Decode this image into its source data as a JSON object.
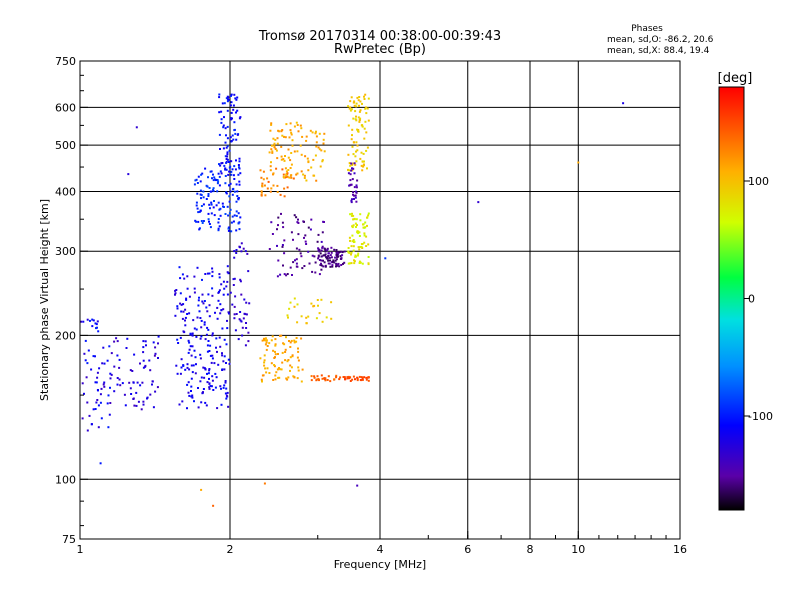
{
  "chart_data": {
    "type": "scatter",
    "title": "Tromsø 20170314 00:38:00-00:39:43",
    "subtitle": "RwPretec (Bp)",
    "xlabel": "Frequency [MHz]",
    "ylabel": "Stationary phase Virtual Height [km]",
    "x_scale": "log",
    "y_scale": "log",
    "xlim": [
      1,
      16
    ],
    "ylim": [
      75,
      750
    ],
    "x_ticks": [
      {
        "value": 1,
        "label": "1"
      },
      {
        "value": 2,
        "label": "2"
      },
      {
        "value": 4,
        "label": "4"
      },
      {
        "value": 6,
        "label": "6"
      },
      {
        "value": 8,
        "label": "8"
      },
      {
        "value": 10,
        "label": "10"
      },
      {
        "value": 16,
        "label": "16"
      }
    ],
    "y_ticks": [
      {
        "value": 75,
        "label": "75"
      },
      {
        "value": 100,
        "label": "100"
      },
      {
        "value": 200,
        "label": "200"
      },
      {
        "value": 300,
        "label": "300"
      },
      {
        "value": 400,
        "label": "400"
      },
      {
        "value": 500,
        "label": "500"
      },
      {
        "value": 600,
        "label": "600"
      },
      {
        "value": 750,
        "label": "750"
      }
    ],
    "x_grid": [
      2,
      4,
      6,
      8,
      10
    ],
    "y_grid": [
      100,
      200,
      300,
      400,
      500,
      600
    ],
    "phase_stats": {
      "heading": "Phases",
      "line_o": "mean, sd,O: -86.2, 20.6",
      "line_x": "mean, sd,X:  88.4, 19.4"
    },
    "colorbar": {
      "label": "[deg]",
      "range": [
        -180,
        180
      ],
      "ticks": [
        {
          "value": 100,
          "label": "100"
        },
        {
          "value": 0,
          "label": "0"
        },
        {
          "value": -100,
          "label": "-100"
        }
      ]
    },
    "clusters": [
      {
        "fmin": 1.0,
        "fmax": 1.15,
        "hmin": 125,
        "hmax": 220,
        "n": 60,
        "phase": -115,
        "spread": 20
      },
      {
        "fmin": 1.15,
        "fmax": 1.45,
        "hmin": 140,
        "hmax": 200,
        "n": 70,
        "phase": -125,
        "spread": 15
      },
      {
        "fmin": 1.55,
        "fmax": 2.0,
        "hmin": 140,
        "hmax": 280,
        "n": 230,
        "phase": -115,
        "spread": 15
      },
      {
        "fmin": 1.7,
        "fmax": 2.1,
        "hmin": 330,
        "hmax": 450,
        "n": 140,
        "phase": -95,
        "spread": 15
      },
      {
        "fmin": 1.9,
        "fmax": 2.1,
        "hmin": 430,
        "hmax": 640,
        "n": 90,
        "phase": -105,
        "spread": 15
      },
      {
        "fmin": 2.0,
        "fmax": 2.2,
        "hmin": 190,
        "hmax": 320,
        "n": 45,
        "phase": -130,
        "spread": 10
      },
      {
        "fmin": 2.3,
        "fmax": 2.8,
        "hmin": 160,
        "hmax": 200,
        "n": 90,
        "phase": 110,
        "spread": 12
      },
      {
        "fmin": 2.3,
        "fmax": 2.7,
        "hmin": 390,
        "hmax": 450,
        "n": 35,
        "phase": 130,
        "spread": 15
      },
      {
        "fmin": 2.4,
        "fmax": 3.1,
        "hmin": 420,
        "hmax": 560,
        "n": 110,
        "phase": 110,
        "spread": 15
      },
      {
        "fmin": 2.4,
        "fmax": 3.1,
        "hmin": 260,
        "hmax": 360,
        "n": 70,
        "phase": -150,
        "spread": 12
      },
      {
        "fmin": 3.0,
        "fmax": 3.4,
        "hmin": 278,
        "hmax": 305,
        "n": 90,
        "phase": -155,
        "spread": 10
      },
      {
        "fmin": 2.9,
        "fmax": 3.4,
        "hmin": 160,
        "hmax": 165,
        "n": 25,
        "phase": 140,
        "spread": 10
      },
      {
        "fmin": 3.4,
        "fmax": 3.8,
        "hmin": 160,
        "hmax": 164,
        "n": 30,
        "phase": 150,
        "spread": 8
      },
      {
        "fmin": 3.45,
        "fmax": 3.8,
        "hmin": 280,
        "hmax": 360,
        "n": 80,
        "phase": 75,
        "spread": 15
      },
      {
        "fmin": 3.45,
        "fmax": 3.8,
        "hmin": 440,
        "hmax": 640,
        "n": 90,
        "phase": 95,
        "spread": 12
      },
      {
        "fmin": 3.45,
        "fmax": 3.6,
        "hmin": 380,
        "hmax": 460,
        "n": 30,
        "phase": -145,
        "spread": 10
      },
      {
        "fmin": 2.6,
        "fmax": 3.2,
        "hmin": 210,
        "hmax": 240,
        "n": 25,
        "phase": 90,
        "spread": 15
      }
    ],
    "extra_points": [
      {
        "f": 12.3,
        "h": 612,
        "phase": -120
      },
      {
        "f": 10.0,
        "h": 460,
        "phase": 110
      },
      {
        "f": 6.3,
        "h": 380,
        "phase": -130
      },
      {
        "f": 1.75,
        "h": 95,
        "phase": 110
      },
      {
        "f": 2.35,
        "h": 98,
        "phase": 130
      },
      {
        "f": 3.6,
        "h": 97,
        "phase": -140
      },
      {
        "f": 1.85,
        "h": 88,
        "phase": 140
      },
      {
        "f": 1.3,
        "h": 545,
        "phase": -130
      },
      {
        "f": 1.1,
        "h": 108,
        "phase": -100
      },
      {
        "f": 4.1,
        "h": 290,
        "phase": -90
      },
      {
        "f": 1.25,
        "h": 435,
        "phase": -125
      }
    ]
  }
}
